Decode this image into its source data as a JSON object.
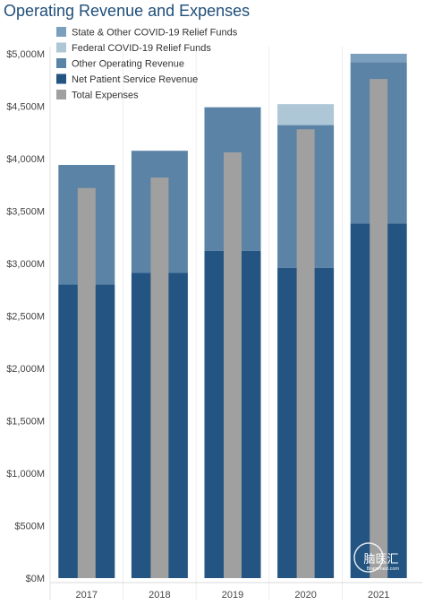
{
  "chart_data": {
    "type": "bar",
    "title": "Operating Revenue and Expenses",
    "xlabel": "",
    "ylabel": "",
    "categories": [
      "2017",
      "2018",
      "2019",
      "2020",
      "2021"
    ],
    "y_ticks": [
      "$0M",
      "$500M",
      "$1,000M",
      "$1,500M",
      "$2,000M",
      "$2,500M",
      "$3,000M",
      "$3,500M",
      "$4,000M",
      "$4,500M",
      "$5,000M"
    ],
    "ylim": [
      0,
      5000
    ],
    "grid": false,
    "legend_position": "top-left",
    "stacked_series": [
      {
        "name": "Net Patient Service Revenue",
        "color": "#235482",
        "values": [
          2800,
          2910,
          3120,
          2960,
          3380
        ]
      },
      {
        "name": "Other Operating Revenue",
        "color": "#5a83a6",
        "values": [
          1140,
          1165,
          1370,
          1360,
          1540
        ]
      },
      {
        "name": "Federal COVID-19 Relief Funds",
        "color": "#aec7d6",
        "values": [
          0,
          0,
          0,
          200,
          0
        ]
      },
      {
        "name": "State & Other COVID-19 Relief Funds",
        "color": "#7aa0bd",
        "values": [
          0,
          0,
          0,
          0,
          80
        ]
      }
    ],
    "overlay_series": {
      "name": "Total Expenses",
      "color": "#a0a0a0",
      "values": [
        3720,
        3820,
        4060,
        4280,
        4760
      ]
    },
    "legend_order": [
      "State & Other COVID-19 Relief Funds",
      "Federal COVID-19 Relief Funds",
      "Other Operating Revenue",
      "Net Patient Service Revenue",
      "Total Expenses"
    ]
  },
  "watermark": {
    "text": "脑医汇",
    "subtext": "Brainmed.com",
    "logo_color": "#ffffff"
  }
}
